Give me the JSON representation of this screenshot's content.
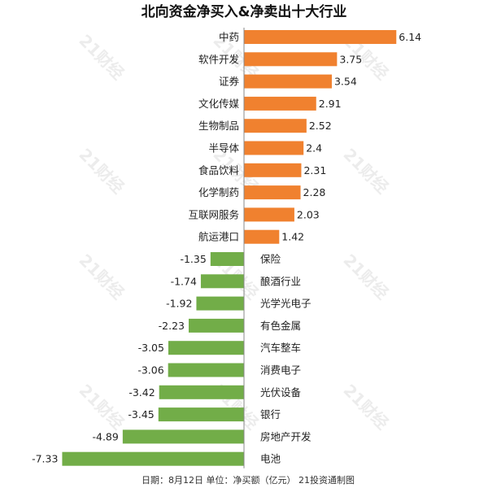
{
  "chart_data": {
    "type": "bar",
    "orientation": "horizontal",
    "title": "北向资金净买入&净卖出十大行业",
    "categories": [
      "中药",
      "软件开发",
      "证券",
      "文化传媒",
      "生物制品",
      "半导体",
      "食品饮料",
      "化学制药",
      "互联网服务",
      "航运港口",
      "保险",
      "酿酒行业",
      "光学光电子",
      "有色金属",
      "汽车整车",
      "消费电子",
      "光伏设备",
      "银行",
      "房地产开发",
      "电池"
    ],
    "values": [
      6.14,
      3.75,
      3.54,
      2.91,
      2.52,
      2.4,
      2.31,
      2.28,
      2.03,
      1.42,
      -1.35,
      -1.74,
      -1.92,
      -2.23,
      -3.05,
      -3.06,
      -3.42,
      -3.45,
      -4.89,
      -7.33
    ],
    "value_labels": [
      "6.14",
      "3.75",
      "3.54",
      "2.91",
      "2.52",
      "2.4",
      "2.31",
      "2.28",
      "2.03",
      "1.42",
      "-1.35",
      "-1.74",
      "-1.92",
      "-2.23",
      "-3.05",
      "-3.06",
      "-3.42",
      "-3.45",
      "-4.89",
      "-7.33"
    ],
    "xlim": [
      -7.6,
      6.5
    ],
    "grid": false,
    "legend": "none",
    "colors": {
      "positive": "#F0812F",
      "negative": "#72AD48",
      "baseline": "#888888"
    },
    "footnote": "日期：8月12日 单位：净买额（亿元） 21投资通制图"
  },
  "watermark": {
    "text": "21财经"
  }
}
